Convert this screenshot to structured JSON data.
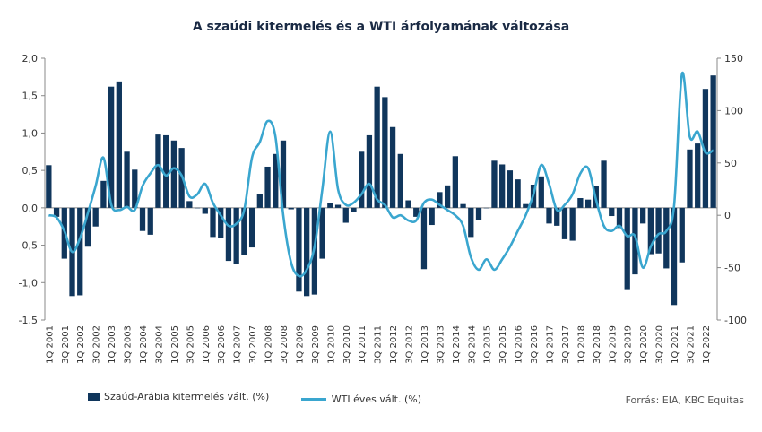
{
  "chart_data": {
    "type": "bar+line",
    "title": "A szaúdi kitermelés és a WTI árfolyamának változása",
    "categories": [
      "1Q 2001",
      "2Q 2001",
      "3Q 2001",
      "4Q 2001",
      "1Q 2002",
      "2Q 2002",
      "3Q 2002",
      "4Q 2002",
      "1Q 2003",
      "2Q 2003",
      "3Q 2003",
      "4Q 2003",
      "1Q 2004",
      "2Q 2004",
      "3Q 2004",
      "4Q 2004",
      "1Q 2005",
      "2Q 2005",
      "3Q 2005",
      "4Q 2005",
      "1Q 2006",
      "2Q 2006",
      "3Q 2006",
      "4Q 2006",
      "1Q 2007",
      "2Q 2007",
      "3Q 2007",
      "4Q 2007",
      "1Q 2008",
      "2Q 2008",
      "3Q 2008",
      "4Q 2008",
      "1Q 2009",
      "2Q 2009",
      "3Q 2009",
      "4Q 2009",
      "1Q 2010",
      "2Q 2010",
      "3Q 2010",
      "4Q 2010",
      "1Q 2011",
      "2Q 2011",
      "3Q 2011",
      "4Q 2011",
      "1Q 2012",
      "2Q 2012",
      "3Q 2012",
      "4Q 2012",
      "1Q 2013",
      "2Q 2013",
      "3Q 2013",
      "4Q 2013",
      "1Q 2014",
      "2Q 2014",
      "3Q 2014",
      "4Q 2014",
      "1Q 2015",
      "2Q 2015",
      "3Q 2015",
      "4Q 2015",
      "1Q 2016",
      "2Q 2016",
      "3Q 2016",
      "4Q 2016",
      "1Q 2017",
      "2Q 2017",
      "3Q 2017",
      "4Q 2017",
      "1Q 2018",
      "2Q 2018",
      "3Q 2018",
      "4Q 2018",
      "1Q 2019",
      "2Q 2019",
      "3Q 2019",
      "4Q 2019",
      "1Q 2020",
      "2Q 2020",
      "3Q 2020",
      "4Q 2020",
      "1Q 2021",
      "2Q 2021",
      "3Q 2021",
      "4Q 2021",
      "1Q 2022",
      "2Q 2022"
    ],
    "x_tick_labels": [
      "1Q 2001",
      "3Q 2001",
      "1Q 2002",
      "3Q 2002",
      "1Q 2003",
      "3Q 2003",
      "1Q 2004",
      "3Q 2004",
      "1Q 2005",
      "3Q 2005",
      "1Q 2006",
      "3Q 2006",
      "1Q 2007",
      "3Q 2007",
      "1Q 2008",
      "3Q 2008",
      "1Q 2009",
      "3Q 2009",
      "1Q 2010",
      "3Q 2010",
      "1Q 2011",
      "3Q 2011",
      "1Q 2012",
      "3Q 2012",
      "1Q 2013",
      "3Q 2013",
      "1Q 2014",
      "3Q 2014",
      "1Q 2015",
      "3Q 2015",
      "1Q 2016",
      "3Q 2016",
      "1Q 2017",
      "3Q 2017",
      "1Q 2018",
      "3Q 2018",
      "1Q 2019",
      "3Q 2019",
      "1Q 2020",
      "3Q 2020",
      "1Q 2021",
      "3Q 2021",
      "1Q 2022"
    ],
    "series": [
      {
        "name": "Szaúd-Arábia kitermelés vált. (%)",
        "type": "bar",
        "axis": "left",
        "color": "#10365c",
        "values": [
          0.57,
          -0.12,
          -0.68,
          -1.18,
          -1.17,
          -0.52,
          -0.25,
          0.36,
          1.62,
          1.69,
          0.75,
          0.51,
          -0.31,
          -0.36,
          0.98,
          0.97,
          0.9,
          0.8,
          0.09,
          0.0,
          -0.08,
          -0.39,
          -0.4,
          -0.71,
          -0.75,
          -0.63,
          -0.53,
          0.18,
          0.55,
          0.72,
          0.9,
          -0.02,
          -1.12,
          -1.18,
          -1.16,
          -0.68,
          0.07,
          0.04,
          -0.2,
          -0.05,
          0.75,
          0.97,
          1.62,
          1.48,
          1.08,
          0.72,
          0.1,
          -0.12,
          -0.82,
          -0.23,
          0.21,
          0.3,
          0.69,
          0.05,
          -0.39,
          -0.16,
          0.0,
          0.63,
          0.58,
          0.5,
          0.38,
          0.05,
          0.31,
          0.42,
          -0.21,
          -0.24,
          -0.42,
          -0.44,
          0.13,
          0.11,
          0.29,
          0.63,
          -0.11,
          -0.27,
          -1.1,
          -0.89,
          -0.21,
          -0.62,
          -0.61,
          -0.81,
          -1.3,
          -0.73,
          0.78,
          0.86,
          1.59,
          1.77
        ]
      },
      {
        "name": "WTI éves vált. (%)",
        "type": "line",
        "axis": "right",
        "color": "#3aa6cf",
        "values": [
          0,
          -2,
          -15,
          -35,
          -22,
          2,
          28,
          55,
          10,
          5,
          8,
          5,
          28,
          40,
          48,
          38,
          45,
          38,
          18,
          20,
          30,
          12,
          0,
          -10,
          -8,
          5,
          55,
          70,
          90,
          75,
          0,
          -45,
          -58,
          -52,
          -30,
          25,
          80,
          25,
          10,
          12,
          20,
          30,
          15,
          10,
          -2,
          0,
          -5,
          -5,
          12,
          15,
          10,
          5,
          0,
          -10,
          -40,
          -52,
          -42,
          -52,
          -42,
          -30,
          -15,
          0,
          20,
          48,
          30,
          5,
          10,
          20,
          40,
          45,
          15,
          -10,
          -15,
          -10,
          -20,
          -20,
          -50,
          -30,
          -18,
          -15,
          10,
          135,
          75,
          80,
          60,
          62
        ]
      }
    ],
    "y_left": {
      "ylim": [
        -1.5,
        2.0
      ],
      "ticks": [
        "-1,5",
        "-1,0",
        "-0,5",
        "0,0",
        "0,5",
        "1,0",
        "1,5",
        "2,0"
      ]
    },
    "y_right": {
      "ylim": [
        -100,
        150
      ],
      "ticks": [
        "-100",
        "-50",
        "0",
        "50",
        "100",
        "150"
      ]
    },
    "grid": false,
    "legend_position": "bottom-left"
  },
  "source_text": "Forrás: EIA, KBC Equitas"
}
